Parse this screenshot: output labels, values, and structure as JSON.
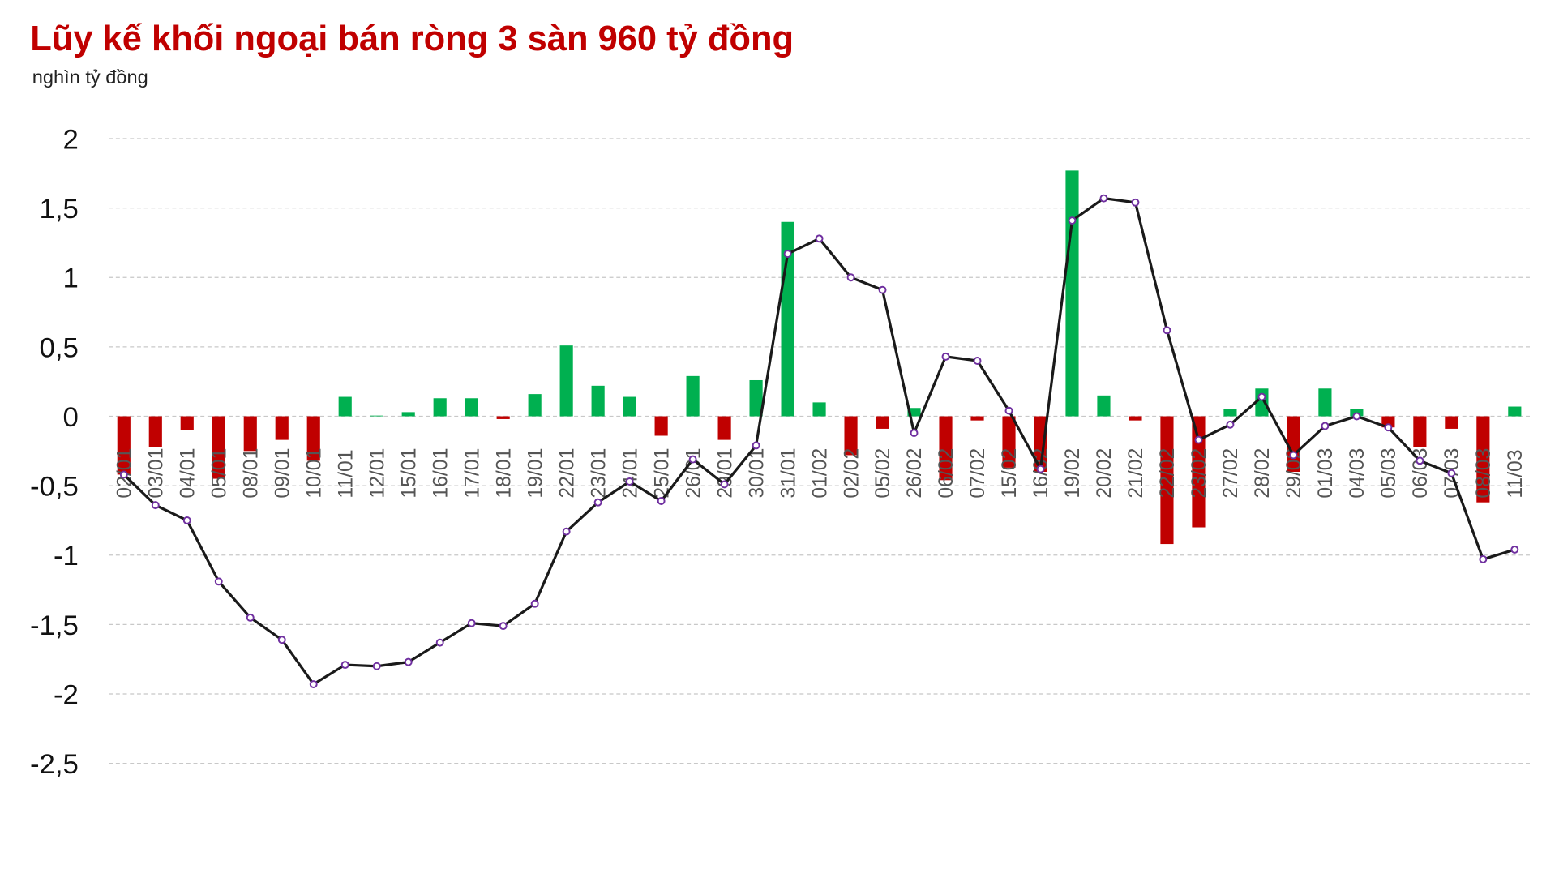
{
  "chart_data": {
    "type": "bar_line",
    "title": "Lũy kế khối ngoại bán ròng 3 sàn 960 tỷ đồng",
    "subtitle": "nghìn tỷ đồng",
    "categories": [
      "02/01",
      "03/01",
      "04/01",
      "05/01",
      "08/01",
      "09/01",
      "10/01",
      "11/01",
      "12/01",
      "15/01",
      "16/01",
      "17/01",
      "18/01",
      "19/01",
      "22/01",
      "23/01",
      "24/01",
      "25/01",
      "26/01",
      "29/01",
      "30/01",
      "31/01",
      "01/02",
      "02/02",
      "05/02",
      "26/02",
      "06/02",
      "07/02",
      "15/02",
      "16/02",
      "19/02",
      "20/02",
      "21/02",
      "22/02",
      "23/02",
      "27/02",
      "28/02",
      "29/02",
      "01/03",
      "04/03",
      "05/03",
      "06/03",
      "07/03",
      "08/03",
      "11/03"
    ],
    "series": [
      {
        "type": "bar",
        "positive_color": "#00b050",
        "negative_color": "#c00000",
        "values": [
          -0.42,
          -0.22,
          -0.1,
          -0.45,
          -0.25,
          -0.17,
          -0.32,
          0.14,
          0.005,
          0.03,
          0.13,
          0.13,
          -0.02,
          0.16,
          0.51,
          0.22,
          0.14,
          -0.14,
          0.29,
          -0.17,
          0.26,
          1.4,
          0.1,
          -0.28,
          -0.09,
          0.06,
          -0.46,
          -0.03,
          -0.37,
          -0.4,
          1.77,
          0.15,
          -0.03,
          -0.92,
          -0.8,
          0.05,
          0.2,
          -0.4,
          0.2,
          0.05,
          -0.08,
          -0.22,
          -0.09,
          -0.62,
          0.07
        ]
      },
      {
        "type": "line",
        "color": "#1a1a1a",
        "marker_color": "#7030a0",
        "values": [
          -0.42,
          -0.64,
          -0.75,
          -1.19,
          -1.45,
          -1.61,
          -1.93,
          -1.79,
          -1.8,
          -1.77,
          -1.63,
          -1.49,
          -1.51,
          -1.35,
          -0.83,
          -0.62,
          -0.47,
          -0.61,
          -0.31,
          -0.49,
          -0.21,
          1.17,
          1.28,
          1.0,
          0.91,
          -0.12,
          0.43,
          0.4,
          0.04,
          -0.38,
          1.41,
          1.57,
          1.54,
          0.62,
          -0.17,
          -0.06,
          0.14,
          -0.28,
          -0.07,
          0.0,
          -0.08,
          -0.32,
          -0.41,
          -1.03,
          -0.96
        ]
      }
    ],
    "ylim": [
      -2.5,
      2
    ],
    "yticks": [
      2,
      {
        "value": 1.5,
        "label": "1,5"
      },
      1,
      {
        "value": 0.5,
        "label": "0,5"
      },
      0,
      {
        "value": -0.5,
        "label": "-0,5"
      },
      -1,
      {
        "value": -1.5,
        "label": "-1,5"
      },
      -2,
      {
        "value": -2.5,
        "label": "-2,5"
      }
    ],
    "grid": true
  }
}
